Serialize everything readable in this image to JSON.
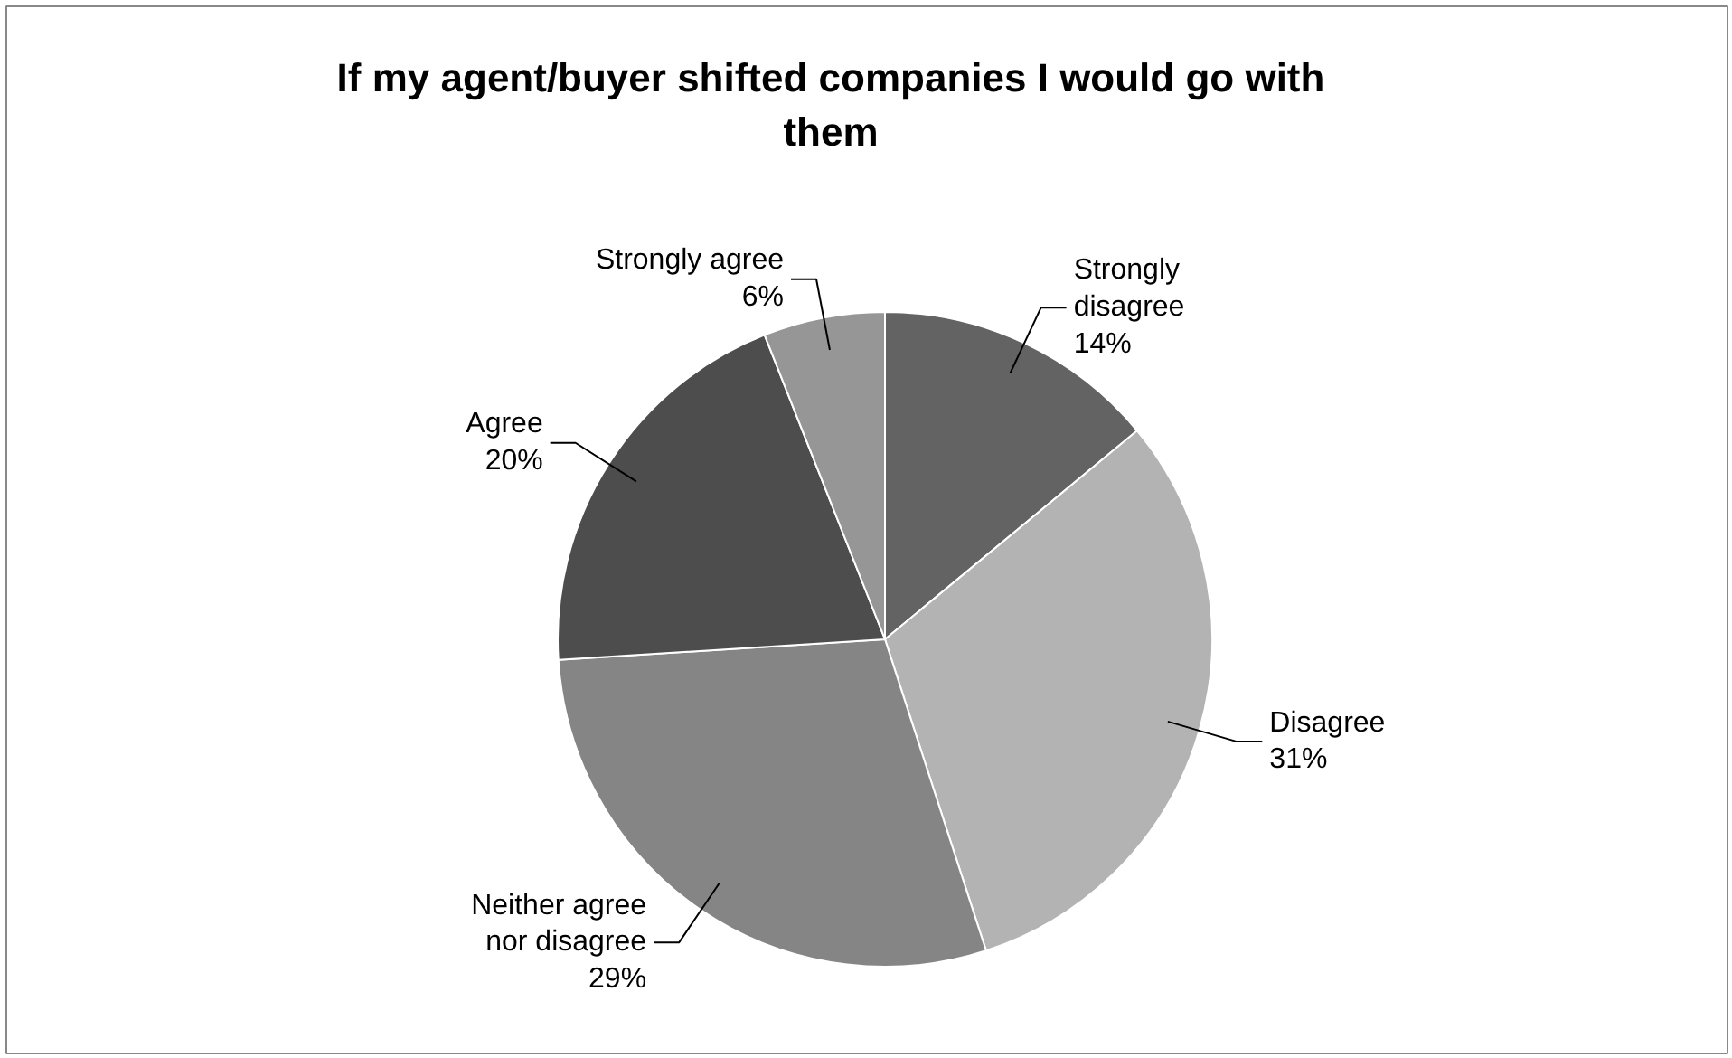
{
  "chart_data": {
    "type": "pie",
    "title": "If my agent/buyer shifted companies I would go with them",
    "categories": [
      "Strongly disagree",
      "Disagree",
      "Neither agree nor disagree",
      "Agree",
      "Strongly agree"
    ],
    "values": [
      14,
      31,
      29,
      20,
      6
    ],
    "colors": [
      "#636363",
      "#b3b3b3",
      "#858585",
      "#4d4d4d",
      "#969696"
    ],
    "value_labels": [
      "14%",
      "31%",
      "29%",
      "20%",
      "6%"
    ]
  }
}
